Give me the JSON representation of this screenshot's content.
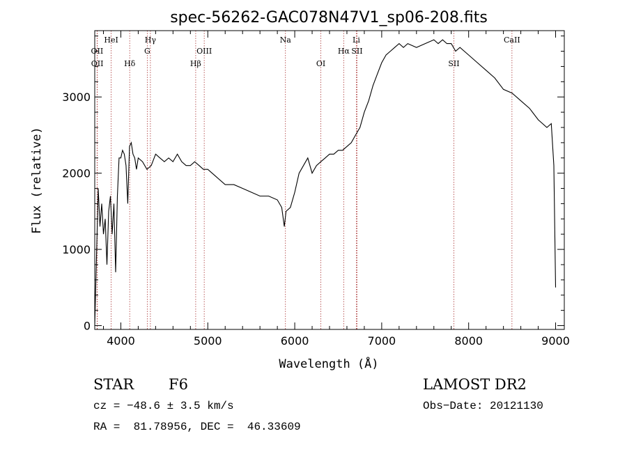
{
  "chart_data": {
    "type": "line",
    "title": "spec-56262-GAC078N47V1_sp06-208.fits",
    "xlabel": "Wavelength (Å)",
    "ylabel": "Flux (relative)",
    "xlim": [
      3700,
      9100
    ],
    "ylim": [
      -50,
      3870
    ],
    "xticks": [
      4000,
      5000,
      6000,
      7000,
      8000,
      9000
    ],
    "yticks": [
      0,
      1000,
      2000,
      3000
    ],
    "lines": [
      {
        "label": "OII",
        "wavelength": 3727,
        "row": 2
      },
      {
        "label": "OII",
        "wavelength": 3729,
        "row": 3
      },
      {
        "label": "HeI",
        "wavelength": 3889,
        "row": 1
      },
      {
        "label": "Hδ",
        "wavelength": 4102,
        "row": 3
      },
      {
        "label": "Hγ",
        "wavelength": 4340,
        "row": 1
      },
      {
        "label": "G",
        "wavelength": 4304,
        "row": 2
      },
      {
        "label": "Hβ",
        "wavelength": 4861,
        "row": 3
      },
      {
        "label": "OIII",
        "wavelength": 4959,
        "row": 2
      },
      {
        "label": "Na",
        "wavelength": 5893,
        "row": 1
      },
      {
        "label": "OI",
        "wavelength": 6300,
        "row": 3
      },
      {
        "label": "Hα",
        "wavelength": 6563,
        "row": 2
      },
      {
        "label": "SII",
        "wavelength": 6716,
        "row": 2
      },
      {
        "label": "Li",
        "wavelength": 6708,
        "row": 1
      },
      {
        "label": "SII",
        "wavelength": 7830,
        "row": 3
      },
      {
        "label": "CaII",
        "wavelength": 8498,
        "row": 1
      }
    ],
    "series": [
      {
        "x": [
          3700,
          3720,
          3740,
          3760,
          3780,
          3800,
          3820,
          3840,
          3860,
          3880,
          3900,
          3920,
          3940,
          3960,
          3980,
          4000,
          4020,
          4040,
          4060,
          4080,
          4100,
          4120,
          4140,
          4160,
          4180,
          4200,
          4250,
          4300,
          4350,
          4400,
          4450,
          4500,
          4550,
          4600,
          4650,
          4700,
          4750,
          4800,
          4850,
          4900,
          4950,
          5000,
          5100,
          5200,
          5300,
          5400,
          5500,
          5600,
          5700,
          5800,
          5850,
          5880,
          5900,
          5950,
          6000,
          6050,
          6100,
          6150,
          6200,
          6250,
          6300,
          6350,
          6400,
          6450,
          6500,
          6550,
          6600,
          6650,
          6700,
          6750,
          6800,
          6850,
          6900,
          6950,
          7000,
          7050,
          7100,
          7150,
          7200,
          7250,
          7300,
          7400,
          7500,
          7600,
          7650,
          7700,
          7750,
          7800,
          7850,
          7900,
          8000,
          8100,
          8200,
          8300,
          8400,
          8500,
          8600,
          8700,
          8800,
          8900,
          8950,
          8980,
          9000
        ],
        "y": [
          0,
          900,
          1800,
          1300,
          1600,
          1200,
          1400,
          800,
          1500,
          1700,
          1200,
          1600,
          700,
          1700,
          2200,
          2200,
          2300,
          2250,
          2100,
          1600,
          2350,
          2400,
          2250,
          2200,
          2050,
          2200,
          2150,
          2050,
          2100,
          2250,
          2200,
          2150,
          2200,
          2150,
          2250,
          2150,
          2100,
          2100,
          2150,
          2100,
          2050,
          2050,
          1950,
          1850,
          1850,
          1800,
          1750,
          1700,
          1700,
          1650,
          1550,
          1300,
          1500,
          1550,
          1750,
          2000,
          2100,
          2200,
          2000,
          2100,
          2150,
          2200,
          2250,
          2250,
          2300,
          2300,
          2350,
          2400,
          2500,
          2600,
          2800,
          2950,
          3150,
          3300,
          3450,
          3550,
          3600,
          3650,
          3700,
          3650,
          3700,
          3650,
          3700,
          3750,
          3700,
          3750,
          3700,
          3700,
          3600,
          3650,
          3550,
          3450,
          3350,
          3250,
          3100,
          3050,
          2950,
          2850,
          2700,
          2600,
          2650,
          2100,
          500
        ]
      }
    ]
  },
  "footer": {
    "class_label": "STAR",
    "subclass": "F6",
    "survey": "LAMOST DR2",
    "cz": "cz = −48.6 ± 3.5 km/s",
    "obs_date": "Obs−Date: 20121130",
    "coords": "RA =  81.78956, DEC =  46.33609"
  }
}
